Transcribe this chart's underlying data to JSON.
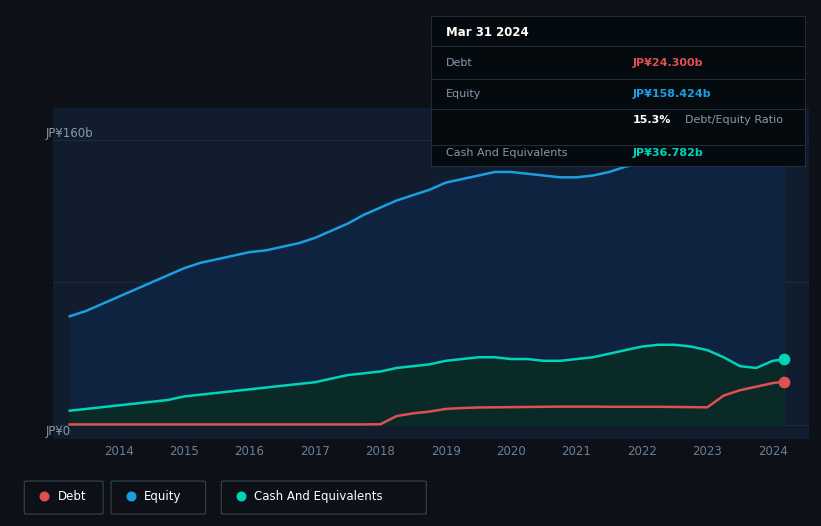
{
  "background_color": "#0d1117",
  "plot_bg_color": "#111d2e",
  "tooltip": {
    "date": "Mar 31 2024",
    "debt_label": "Debt",
    "debt_value": "JP¥24.300b",
    "equity_label": "Equity",
    "equity_value": "JP¥158.424b",
    "ratio_value": "15.3%",
    "ratio_label": "Debt/Equity Ratio",
    "cash_label": "Cash And Equivalents",
    "cash_value": "JP¥36.782b"
  },
  "ylabel_top": "JP¥160b",
  "ylabel_bottom": "JP¥0",
  "xlim_start": 2013.0,
  "xlim_end": 2024.55,
  "ylim_min": -8,
  "ylim_max": 178,
  "equity_color": "#1a9fe0",
  "equity_fill_color": "#0e2340",
  "debt_color": "#e05050",
  "cash_color": "#00d4b8",
  "cash_fill_color": "#0a2a28",
  "line_width": 1.8,
  "dot_size": 55,
  "years": [
    2013.25,
    2013.5,
    2013.75,
    2014.0,
    2014.25,
    2014.5,
    2014.75,
    2015.0,
    2015.25,
    2015.5,
    2015.75,
    2016.0,
    2016.25,
    2016.5,
    2016.75,
    2017.0,
    2017.25,
    2017.5,
    2017.75,
    2018.0,
    2018.25,
    2018.5,
    2018.75,
    2019.0,
    2019.25,
    2019.5,
    2019.75,
    2020.0,
    2020.25,
    2020.5,
    2020.75,
    2021.0,
    2021.25,
    2021.5,
    2021.75,
    2022.0,
    2022.25,
    2022.5,
    2022.75,
    2023.0,
    2023.25,
    2023.5,
    2023.75,
    2024.0,
    2024.17
  ],
  "equity": [
    61,
    64,
    68,
    72,
    76,
    80,
    84,
    88,
    91,
    93,
    95,
    97,
    98,
    100,
    102,
    105,
    109,
    113,
    118,
    122,
    126,
    129,
    132,
    136,
    138,
    140,
    142,
    142,
    141,
    140,
    139,
    139,
    140,
    142,
    145,
    147,
    148,
    149,
    149,
    148,
    146,
    148,
    151,
    157,
    158.4
  ],
  "debt": [
    0.3,
    0.3,
    0.3,
    0.3,
    0.3,
    0.3,
    0.3,
    0.3,
    0.3,
    0.3,
    0.3,
    0.3,
    0.3,
    0.3,
    0.3,
    0.3,
    0.3,
    0.3,
    0.3,
    0.4,
    5.0,
    6.5,
    7.5,
    9.0,
    9.5,
    9.8,
    9.9,
    10.0,
    10.1,
    10.2,
    10.3,
    10.3,
    10.3,
    10.2,
    10.2,
    10.2,
    10.2,
    10.1,
    10.0,
    9.9,
    16.5,
    19.5,
    21.5,
    23.5,
    24.3
  ],
  "cash": [
    8,
    9,
    10,
    11,
    12,
    13,
    14,
    16,
    17,
    18,
    19,
    20,
    21,
    22,
    23,
    24,
    26,
    28,
    29,
    30,
    32,
    33,
    34,
    36,
    37,
    38,
    38,
    37,
    37,
    36,
    36,
    37,
    38,
    40,
    42,
    44,
    45,
    45,
    44,
    42,
    38,
    33,
    32,
    36,
    36.8
  ],
  "xticks": [
    2014,
    2015,
    2016,
    2017,
    2018,
    2019,
    2020,
    2021,
    2022,
    2023,
    2024
  ],
  "xtick_labels": [
    "2014",
    "2015",
    "2016",
    "2017",
    "2018",
    "2019",
    "2020",
    "2021",
    "2022",
    "2023",
    "2024"
  ],
  "legend_labels": [
    "Debt",
    "Equity",
    "Cash And Equivalents"
  ],
  "legend_colors": [
    "#e05050",
    "#1a9fe0",
    "#00d4b8"
  ],
  "gridline_color": "#1a2d40",
  "tick_color": "#6a8099",
  "text_color": "#8899aa"
}
